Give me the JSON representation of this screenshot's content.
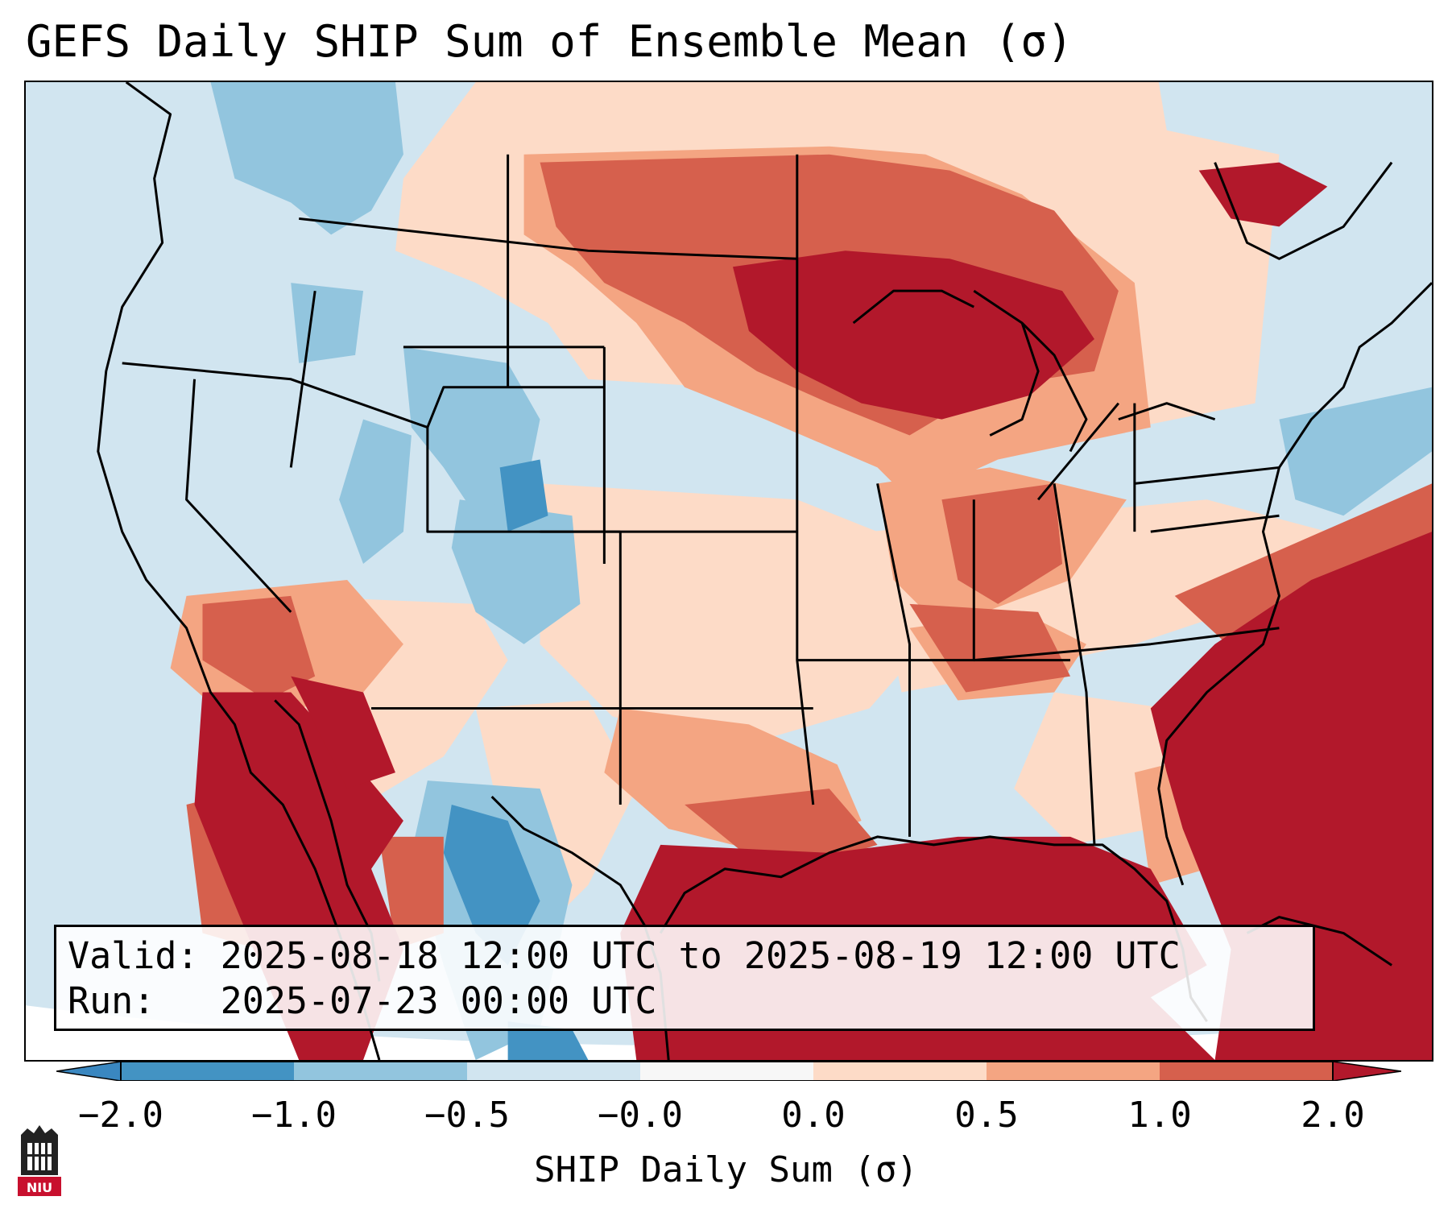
{
  "title": "GEFS Daily SHIP Sum of Ensemble Mean (σ)",
  "info": {
    "valid_line": "Valid: 2025-08-18 12:00 UTC to 2025-08-19 12:00 UTC",
    "run_line": "Run:   2025-07-23 00:00 UTC"
  },
  "colorbar": {
    "label": "SHIP Daily Sum (σ)",
    "ticks": [
      "−2.0",
      "−1.0",
      "−0.5",
      "−0.0",
      "0.0",
      "0.5",
      "1.0",
      "2.0"
    ],
    "colors": {
      "min_extend": "#3a87c0",
      "bin_-2_-1": "#4393c3",
      "bin_-1_-0.5": "#92c5de",
      "bin_-0.5_0": "#d1e5f0",
      "bin_zero": "#f7f7f7",
      "bin_0_0.5": "#fddbc7",
      "bin_0.5_1": "#f4a582",
      "bin_1_2": "#d6604d",
      "max_extend": "#b2182b"
    }
  },
  "logo": {
    "text": "NIU",
    "color": "#c8102e"
  }
}
